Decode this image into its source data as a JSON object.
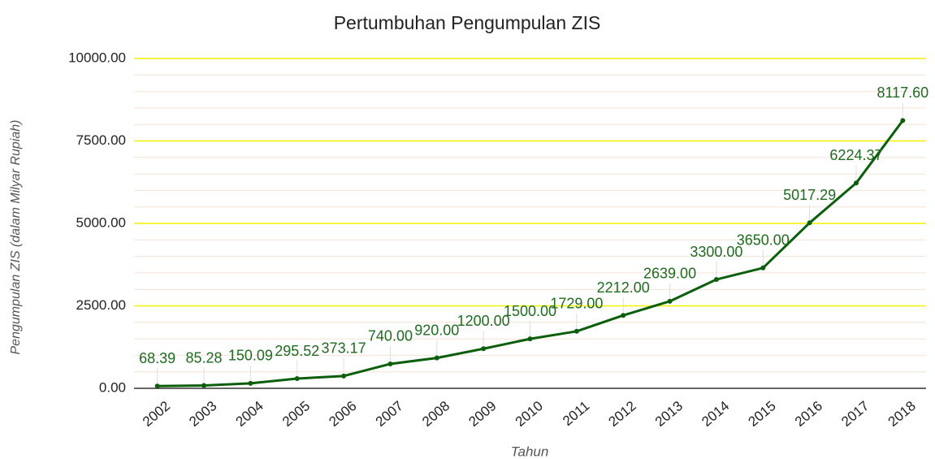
{
  "chart_data": {
    "type": "line",
    "title": "Pertumbuhan Pengumpulan ZIS",
    "x_label": "Tahun",
    "y_label": "Pengumpulan ZIS (dalam Milyar Rupiah)",
    "categories": [
      "2002",
      "2003",
      "2004",
      "2005",
      "2006",
      "2007",
      "2008",
      "2009",
      "2010",
      "2011",
      "2012",
      "2013",
      "2014",
      "2015",
      "2016",
      "2017",
      "2018"
    ],
    "values": [
      68.39,
      85.28,
      150.09,
      295.52,
      373.17,
      740,
      920,
      1200,
      1500,
      1729,
      2212,
      2639,
      3300,
      3650,
      5017.29,
      6224.37,
      8117.6
    ],
    "value_labels": [
      "68.39",
      "85.28",
      "150.09",
      "295.52",
      "373.17",
      "740.00",
      "920.00",
      "1200.00",
      "1500.00",
      "1729.00",
      "2212.00",
      "2639.00",
      "3300.00",
      "3650.00",
      "5017.29",
      "6224.37",
      "8117.60"
    ],
    "color": "#0b5e0b",
    "label_color": "#1f6b1f",
    "ylim": [
      0,
      10000
    ],
    "yticks": [
      {
        "value": 0,
        "label": "0.00"
      },
      {
        "value": 2500,
        "label": "2500.00"
      },
      {
        "value": 5000,
        "label": "5000.00"
      },
      {
        "value": 7500,
        "label": "7500.00"
      },
      {
        "value": 10000,
        "label": "10000.00"
      }
    ],
    "minor_yticks": [
      500,
      1000,
      1500,
      2000,
      3000,
      3500,
      4000,
      4500,
      5500,
      6000,
      6500,
      7000,
      8000,
      8500,
      9000,
      9500
    ],
    "grid": true,
    "grid_color": "#f2f200",
    "minor_grid_color": "#f6e2d6"
  }
}
